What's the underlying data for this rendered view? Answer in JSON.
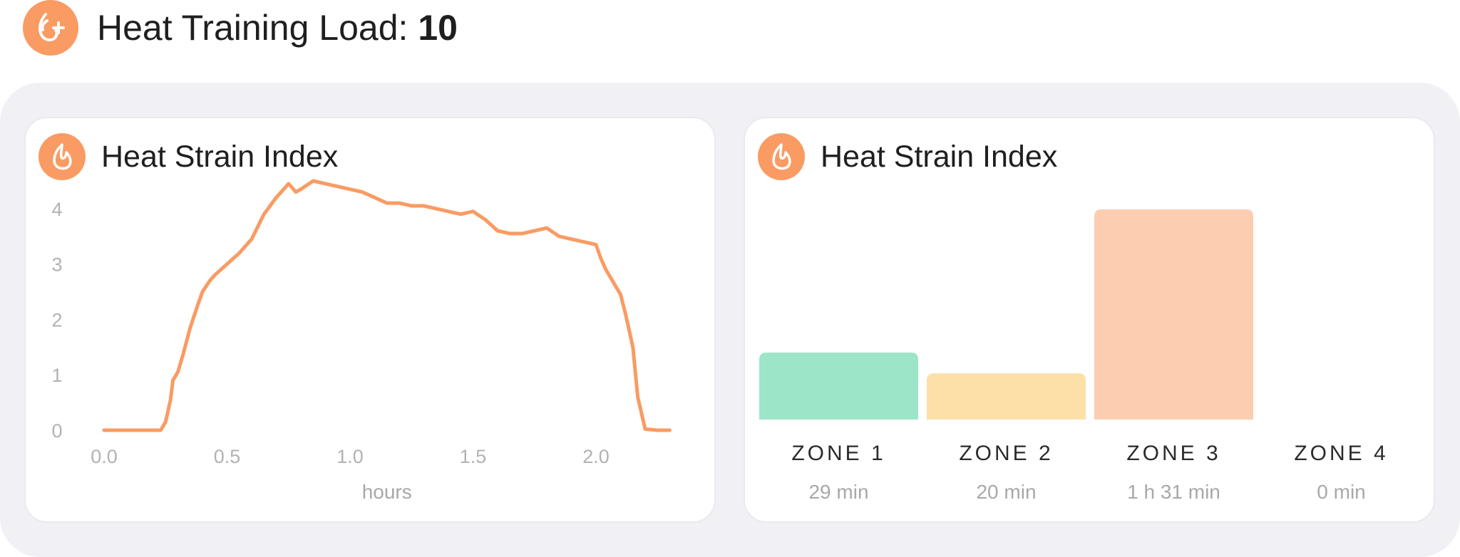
{
  "header": {
    "label": "Heat Training Load:",
    "value": "10",
    "icon": "flame-plus-icon",
    "accent": "#f99b63"
  },
  "cards": {
    "left": {
      "title": "Heat Strain Index",
      "icon": "flame-icon"
    },
    "right": {
      "title": "Heat Strain Index",
      "icon": "flame-icon"
    }
  },
  "chart_data": [
    {
      "type": "line",
      "title": "Heat Strain Index",
      "xlabel": "hours",
      "ylabel": "",
      "xlim": [
        0,
        2.4
      ],
      "ylim": [
        0,
        4.5
      ],
      "xticks": [
        "0.0",
        "0.5",
        "1.0",
        "1.5",
        "2.0"
      ],
      "yticks": [
        "0",
        "1",
        "2",
        "3",
        "4"
      ],
      "grid": false,
      "color": "#f99b63",
      "series": [
        {
          "x": [
            0.0,
            0.05,
            0.1,
            0.15,
            0.2,
            0.23,
            0.25,
            0.27,
            0.28,
            0.3,
            0.32,
            0.35,
            0.38,
            0.4,
            0.43,
            0.45,
            0.5,
            0.55,
            0.6,
            0.65,
            0.7,
            0.75,
            0.78,
            0.8,
            0.85,
            0.9,
            0.95,
            1.0,
            1.05,
            1.1,
            1.15,
            1.2,
            1.25,
            1.3,
            1.35,
            1.4,
            1.45,
            1.5,
            1.55,
            1.6,
            1.65,
            1.7,
            1.75,
            1.8,
            1.85,
            1.9,
            1.95,
            2.0,
            2.02,
            2.04,
            2.06,
            2.08,
            2.1,
            2.12,
            2.15,
            2.17,
            2.2,
            2.25,
            2.3
          ],
          "y": [
            0,
            0,
            0,
            0,
            0,
            0,
            0.15,
            0.55,
            0.9,
            1.05,
            1.35,
            1.85,
            2.25,
            2.5,
            2.7,
            2.8,
            3.0,
            3.2,
            3.45,
            3.9,
            4.2,
            4.45,
            4.3,
            4.35,
            4.5,
            4.45,
            4.4,
            4.35,
            4.3,
            4.2,
            4.1,
            4.1,
            4.05,
            4.05,
            4.0,
            3.95,
            3.9,
            3.95,
            3.8,
            3.6,
            3.55,
            3.55,
            3.6,
            3.65,
            3.5,
            3.45,
            3.4,
            3.35,
            3.1,
            2.9,
            2.75,
            2.6,
            2.45,
            2.1,
            1.5,
            0.6,
            0.02,
            0,
            0
          ]
        }
      ]
    },
    {
      "type": "bar",
      "title": "Heat Strain Index",
      "categories": [
        "ZONE 1",
        "ZONE 2",
        "ZONE 3",
        "ZONE 4"
      ],
      "values": [
        29,
        20,
        91,
        0
      ],
      "durations": [
        "29 min",
        "20 min",
        "1 h 31 min",
        "0 min"
      ],
      "colors": [
        "#9ce5c9",
        "#fde0a8",
        "#fdcdb1",
        "#e6e6e6"
      ],
      "unit": "min"
    }
  ]
}
